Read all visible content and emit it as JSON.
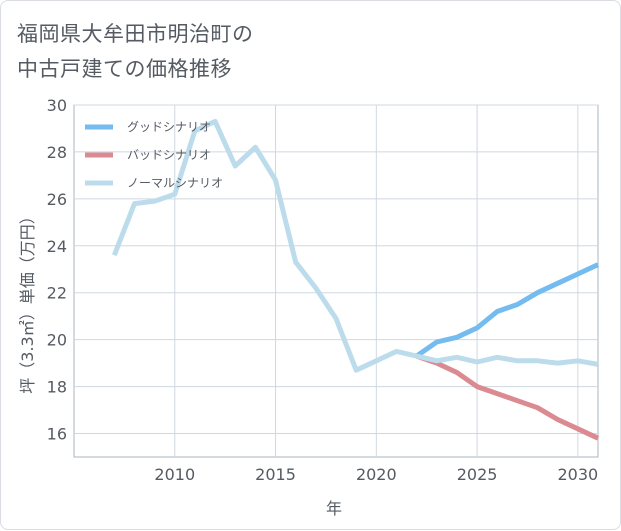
{
  "title": "福岡県大牟田市明治町の\n中古戸建ての価格推移",
  "chart_data": {
    "type": "line",
    "xlabel": "年",
    "ylabel": "坪（3.3㎡）単価（万円）",
    "xlim": [
      2005,
      2031
    ],
    "ylim": [
      15,
      30
    ],
    "x_ticks": [
      2010,
      2015,
      2020,
      2025,
      2030
    ],
    "y_ticks": [
      16,
      18,
      20,
      22,
      24,
      26,
      28,
      30
    ],
    "grid": true,
    "legend_position": "top-left",
    "series": [
      {
        "name": "グッドシナリオ",
        "color": "#74bbef",
        "x": [
          2022,
          2023,
          2024,
          2025,
          2026,
          2027,
          2028,
          2029,
          2030,
          2031
        ],
        "y": [
          19.3,
          19.9,
          20.1,
          20.5,
          21.2,
          21.5,
          22.0,
          22.4,
          22.8,
          23.2
        ]
      },
      {
        "name": "バッドシナリオ",
        "color": "#db8a91",
        "x": [
          2022,
          2023,
          2024,
          2025,
          2026,
          2027,
          2028,
          2029,
          2030,
          2031
        ],
        "y": [
          19.3,
          19.0,
          18.6,
          18.0,
          17.7,
          17.4,
          17.1,
          16.6,
          16.2,
          15.8
        ]
      },
      {
        "name": "ノーマルシナリオ",
        "color": "#bcdcec",
        "x": [
          2007,
          2008,
          2009,
          2010,
          2011,
          2012,
          2013,
          2014,
          2015,
          2016,
          2017,
          2018,
          2019,
          2020,
          2021,
          2022,
          2023,
          2024,
          2025,
          2026,
          2027,
          2028,
          2029,
          2030,
          2031
        ],
        "y": [
          23.6,
          25.8,
          25.9,
          26.2,
          28.9,
          29.3,
          27.4,
          28.2,
          26.8,
          23.3,
          22.2,
          20.9,
          18.7,
          19.1,
          19.5,
          19.3,
          19.1,
          19.25,
          19.05,
          19.25,
          19.1,
          19.1,
          19.0,
          19.1,
          18.95
        ]
      }
    ]
  }
}
